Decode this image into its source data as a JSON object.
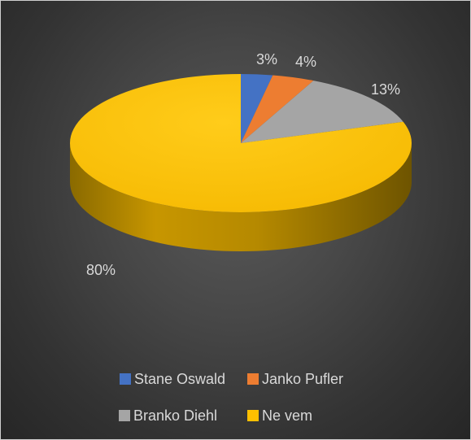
{
  "chart_data": {
    "type": "pie",
    "title": "",
    "categories": [
      "Stane Oswald",
      "Janko Pufler",
      "Branko Diehl",
      "Ne vem"
    ],
    "values": [
      3,
      4,
      13,
      80
    ],
    "labels": [
      "3%",
      "4%",
      "13%",
      "80%"
    ],
    "colors": [
      "#4472C4",
      "#ED7D31",
      "#A5A5A5",
      "#FFC000"
    ],
    "legend_position": "bottom",
    "style": "3d"
  }
}
